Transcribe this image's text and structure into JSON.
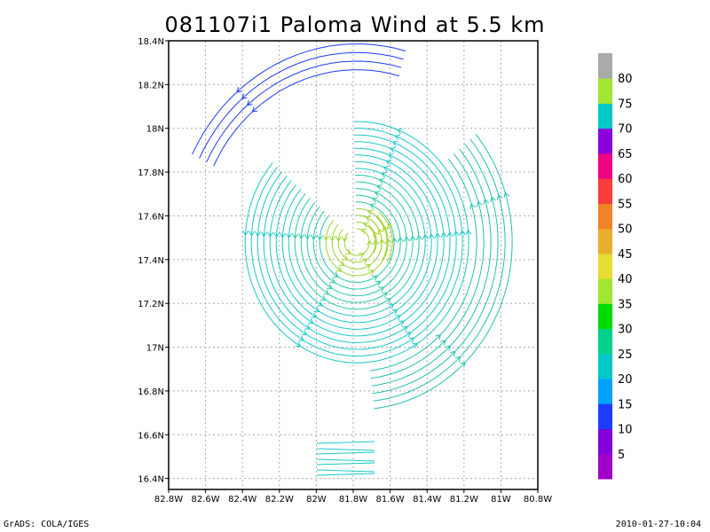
{
  "chart_data": {
    "type": "streamline",
    "title": "081107i1 Paloma Wind at 5.5 km",
    "xlabel": "",
    "ylabel": "",
    "xlim": [
      -82.8,
      -80.8
    ],
    "ylim": [
      16.35,
      18.4
    ],
    "x_ticks": [
      -82.8,
      -82.6,
      -82.4,
      -82.2,
      -82.0,
      -81.8,
      -81.6,
      -81.4,
      -81.2,
      -81.0,
      -80.8
    ],
    "x_tick_labels": [
      "82.8W",
      "82.6W",
      "82.4W",
      "82.2W",
      "82W",
      "81.8W",
      "81.6W",
      "81.4W",
      "81.2W",
      "81W",
      "80.8W"
    ],
    "y_ticks": [
      16.4,
      16.6,
      16.8,
      17.0,
      17.2,
      17.4,
      17.6,
      17.8,
      18.0,
      18.2,
      18.4
    ],
    "y_tick_labels": [
      "16.4N",
      "16.6N",
      "16.8N",
      "17N",
      "17.2N",
      "17.4N",
      "17.6N",
      "17.8N",
      "18N",
      "18.2N",
      "18.4N"
    ],
    "grid": true,
    "center": {
      "lon": -81.78,
      "lat": 17.48
    },
    "colorbar": {
      "levels": [
        5,
        10,
        15,
        20,
        25,
        30,
        35,
        40,
        45,
        50,
        55,
        60,
        65,
        70,
        75,
        80
      ],
      "colors": [
        "#a000c8",
        "#8200dc",
        "#1e3cff",
        "#00a0ff",
        "#00c8c8",
        "#00d28c",
        "#00dc00",
        "#a0e632",
        "#e6dc32",
        "#e6af2d",
        "#f08228",
        "#fa3c3c",
        "#f00082",
        "#8c00dc",
        "#00c8c8",
        "#a0e632",
        "#aaaaaa"
      ]
    }
  },
  "footer": {
    "left": "GrADS: COLA/IGES",
    "right": "2010-01-27-10:04"
  }
}
